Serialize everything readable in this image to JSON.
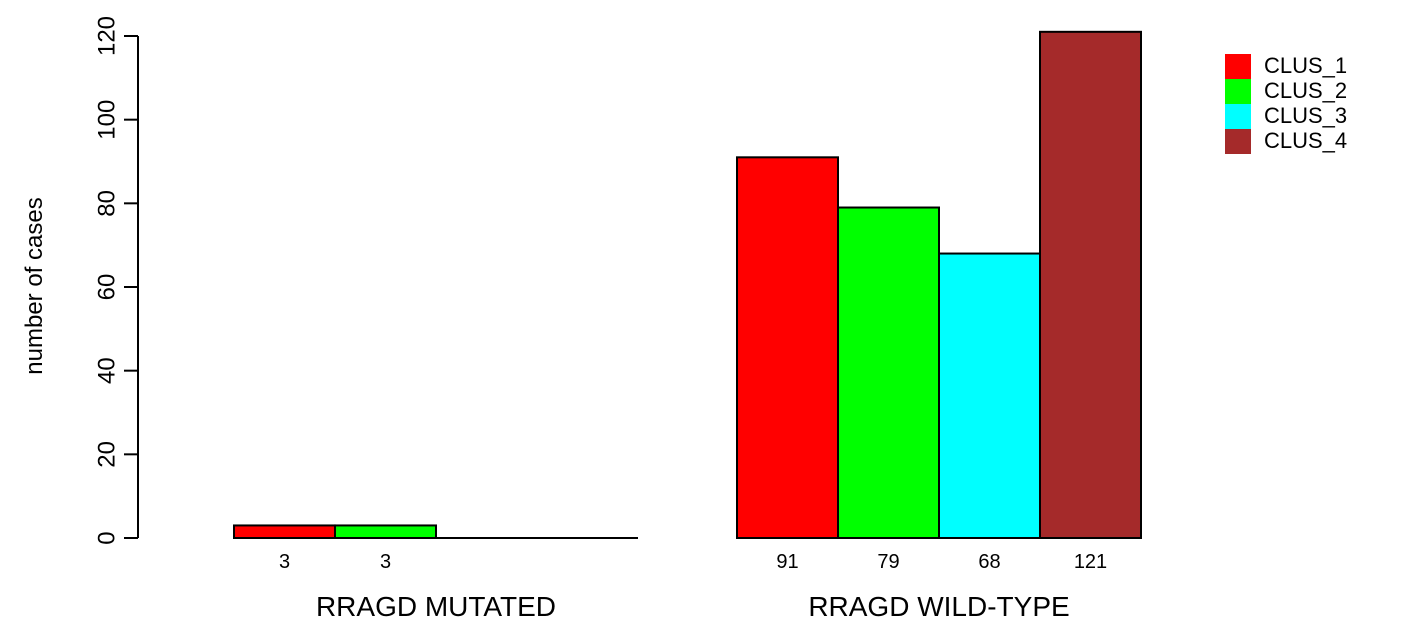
{
  "chart_data": {
    "type": "bar",
    "ylabel": "number of cases",
    "xlabel": "",
    "ylim": [
      0,
      120
    ],
    "yticks": [
      0,
      20,
      40,
      60,
      80,
      100,
      120
    ],
    "grid": false,
    "legend_position": "top-right",
    "groups": [
      {
        "label": "RRAGD MUTATED",
        "bars": [
          {
            "series": "CLUS_1",
            "value": 3,
            "label": "3"
          },
          {
            "series": "CLUS_2",
            "value": 3,
            "label": "3"
          },
          {
            "series": "CLUS_3",
            "value": 0,
            "label": ""
          },
          {
            "series": "CLUS_4",
            "value": 0,
            "label": ""
          }
        ]
      },
      {
        "label": "RRAGD WILD-TYPE",
        "bars": [
          {
            "series": "CLUS_1",
            "value": 91,
            "label": "91"
          },
          {
            "series": "CLUS_2",
            "value": 79,
            "label": "79"
          },
          {
            "series": "CLUS_3",
            "value": 68,
            "label": "68"
          },
          {
            "series": "CLUS_4",
            "value": 121,
            "label": "121"
          }
        ]
      }
    ],
    "series": [
      {
        "name": "CLUS_1",
        "color": "#ff0000"
      },
      {
        "name": "CLUS_2",
        "color": "#00ff00"
      },
      {
        "name": "CLUS_3",
        "color": "#00ffff"
      },
      {
        "name": "CLUS_4",
        "color": "#a52a2a"
      }
    ]
  }
}
